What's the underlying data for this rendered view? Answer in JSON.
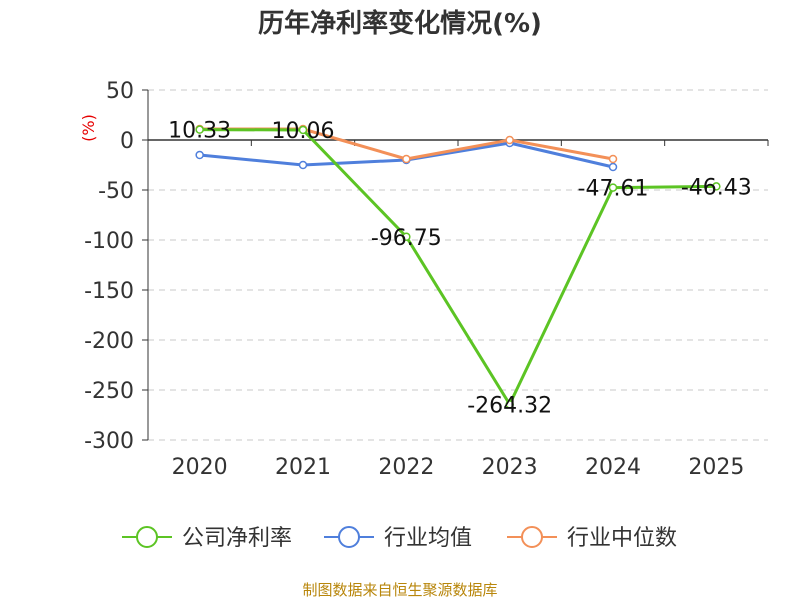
{
  "chart_data": {
    "type": "line",
    "title": "历年净利率变化情况(%)",
    "unit_label": "(%)",
    "categories": [
      "2020",
      "2021",
      "2022",
      "2023",
      "2024",
      "2025"
    ],
    "ylim": [
      -300,
      50
    ],
    "yticks": [
      50,
      0,
      -50,
      -100,
      -150,
      -200,
      -250,
      -300
    ],
    "grid": true,
    "legend_position": "bottom",
    "series": [
      {
        "name": "公司净利率",
        "color": "#5cc424",
        "values": [
          10.33,
          10.06,
          -96.75,
          -264.32,
          -47.61,
          -46.43
        ],
        "labels": [
          "10.33",
          "10.06",
          "-96.75",
          "-264.32",
          "-47.61",
          "-46.43"
        ],
        "show_labels": true
      },
      {
        "name": "行业均值",
        "color": "#4f7fdc",
        "values": [
          -15,
          -25,
          -20,
          -3,
          -27,
          null
        ],
        "show_labels": false
      },
      {
        "name": "行业中位数",
        "color": "#f39058",
        "values": [
          11,
          11,
          -19,
          0,
          -19,
          null
        ],
        "show_labels": false
      }
    ],
    "source": "制图数据来自恒生聚源数据库"
  }
}
